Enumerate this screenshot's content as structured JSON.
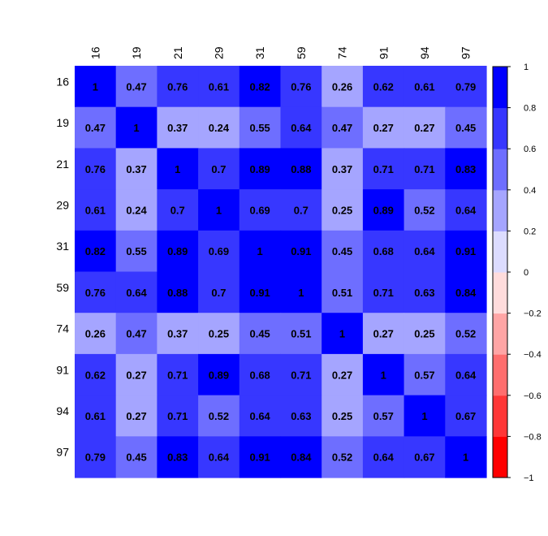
{
  "chart_data": {
    "type": "heatmap",
    "labels": [
      "16",
      "19",
      "21",
      "29",
      "31",
      "59",
      "74",
      "91",
      "94",
      "97"
    ],
    "values": [
      [
        "1",
        "0.47",
        "0.76",
        "0.61",
        "0.82",
        "0.76",
        "0.26",
        "0.62",
        "0.61",
        "0.79"
      ],
      [
        "0.47",
        "1",
        "0.37",
        "0.24",
        "0.55",
        "0.64",
        "0.47",
        "0.27",
        "0.27",
        "0.45"
      ],
      [
        "0.76",
        "0.37",
        "1",
        "0.7",
        "0.89",
        "0.88",
        "0.37",
        "0.71",
        "0.71",
        "0.83"
      ],
      [
        "0.61",
        "0.24",
        "0.7",
        "1",
        "0.69",
        "0.7",
        "0.25",
        "0.89",
        "0.52",
        "0.64"
      ],
      [
        "0.82",
        "0.55",
        "0.89",
        "0.69",
        "1",
        "0.91",
        "0.45",
        "0.68",
        "0.64",
        "0.91"
      ],
      [
        "0.76",
        "0.64",
        "0.88",
        "0.7",
        "0.91",
        "1",
        "0.51",
        "0.71",
        "0.63",
        "0.84"
      ],
      [
        "0.26",
        "0.47",
        "0.37",
        "0.25",
        "0.45",
        "0.51",
        "1",
        "0.27",
        "0.25",
        "0.52"
      ],
      [
        "0.62",
        "0.27",
        "0.71",
        "0.89",
        "0.68",
        "0.71",
        "0.27",
        "1",
        "0.57",
        "0.64"
      ],
      [
        "0.61",
        "0.27",
        "0.71",
        "0.52",
        "0.64",
        "0.63",
        "0.25",
        "0.57",
        "1",
        "0.67"
      ],
      [
        "0.79",
        "0.45",
        "0.83",
        "0.64",
        "0.91",
        "0.84",
        "0.52",
        "0.64",
        "0.67",
        "1"
      ]
    ],
    "color_scale": {
      "range": [
        -1,
        1
      ],
      "breaks": [
        -1,
        -0.8,
        -0.6,
        -0.4,
        -0.2,
        0,
        0.2,
        0.4,
        0.6,
        0.8,
        1
      ],
      "tick_labels": [
        "1",
        "0.8",
        "0.6",
        "0.4",
        "0.2",
        "0",
        "−0.2",
        "−0.4",
        "−0.6",
        "−0.8",
        "−1"
      ],
      "colors": [
        "#FF0000",
        "#FF3737",
        "#FF6E6E",
        "#FFA5A5",
        "#FFDCDC",
        "#DCDCFF",
        "#A5A5FF",
        "#6E6EFF",
        "#3737FF",
        "#0000FF"
      ]
    },
    "legend_position": "right"
  }
}
